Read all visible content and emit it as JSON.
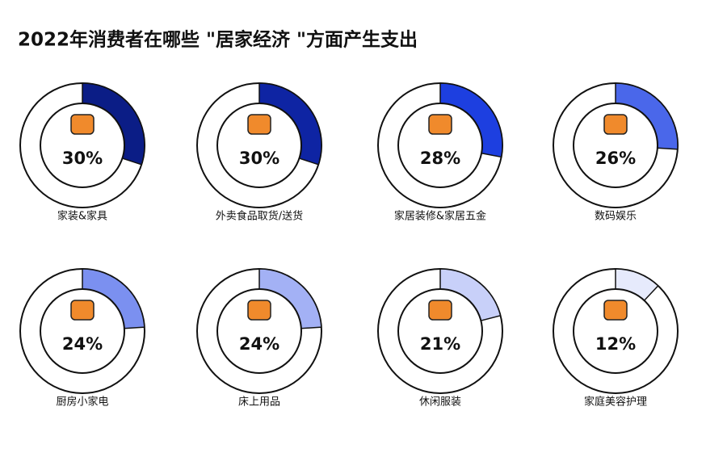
{
  "chart_data": {
    "type": "donut",
    "title": "2022年消费者在哪些 \"居家经济 \"方面产生支出",
    "categories": [
      "家装&家具",
      "外卖食品取货/送货",
      "家居装修&家居五金",
      "数码娱乐",
      "厨房小家电",
      "床上用品",
      "休闲服装",
      "家庭美容护理"
    ],
    "values": [
      30,
      30,
      28,
      26,
      24,
      24,
      21,
      12
    ],
    "value_labels": [
      "30%",
      "30%",
      "28%",
      "26%",
      "24%",
      "24%",
      "21%",
      "12%"
    ],
    "colors": [
      "#0b1d86",
      "#0e24a3",
      "#1d3fe0",
      "#4a67ea",
      "#7b90f0",
      "#a3b1f5",
      "#c8d0f9",
      "#e6eafc"
    ]
  }
}
